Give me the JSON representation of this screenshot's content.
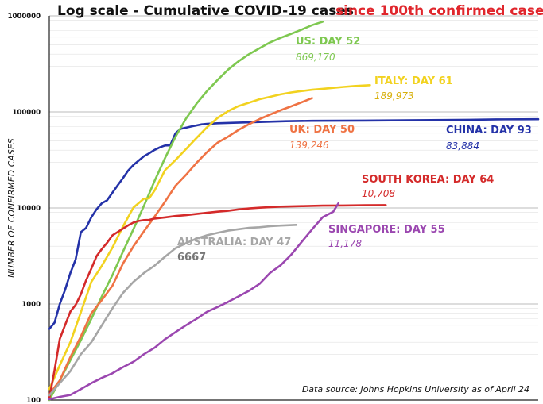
{
  "chart_data": {
    "type": "line",
    "title_part1": "Log scale - Cumulative COVID-19 cases",
    "title_part2": "since 100th confirmed case",
    "ylabel": "NUMBER OF CONFIRMED CASES",
    "yscale": "log",
    "ylim": [
      100,
      1000000
    ],
    "xlim": [
      0,
      93
    ],
    "yticks": [
      {
        "value": 100,
        "label": "100"
      },
      {
        "value": 1000,
        "label": "1000"
      },
      {
        "value": 10000,
        "label": "10000"
      },
      {
        "value": 100000,
        "label": "100000"
      },
      {
        "value": 1000000,
        "label": "1000000"
      }
    ],
    "grid": true,
    "source_note": "Data source: Johns Hopkins University as of April 24",
    "colors": {
      "title_accent": "#e0262c",
      "axis": "#222222",
      "grid_major": "#bbbbbb",
      "grid_minor": "#e2e2e2"
    },
    "series": [
      {
        "id": "china",
        "label": "CHINA: DAY 93",
        "value_label": "83,884",
        "color": "#2432a8",
        "points": [
          [
            0,
            550
          ],
          [
            1,
            640
          ],
          [
            2,
            1000
          ],
          [
            3,
            1400
          ],
          [
            4,
            2100
          ],
          [
            5,
            2900
          ],
          [
            6,
            5600
          ],
          [
            7,
            6200
          ],
          [
            8,
            8000
          ],
          [
            9,
            9700
          ],
          [
            10,
            11200
          ],
          [
            11,
            12000
          ],
          [
            12,
            14400
          ],
          [
            13,
            17200
          ],
          [
            14,
            20400
          ],
          [
            15,
            24500
          ],
          [
            16,
            28000
          ],
          [
            17,
            31100
          ],
          [
            18,
            34500
          ],
          [
            19,
            37100
          ],
          [
            20,
            40200
          ],
          [
            21,
            42700
          ],
          [
            22,
            44700
          ],
          [
            23,
            44900
          ],
          [
            24,
            59800
          ],
          [
            25,
            66500
          ],
          [
            26,
            68500
          ],
          [
            27,
            70500
          ],
          [
            28,
            72400
          ],
          [
            29,
            74200
          ],
          [
            30,
            75000
          ],
          [
            32,
            76200
          ],
          [
            35,
            77000
          ],
          [
            40,
            78500
          ],
          [
            45,
            80000
          ],
          [
            50,
            80800
          ],
          [
            55,
            81000
          ],
          [
            60,
            81300
          ],
          [
            65,
            81500
          ],
          [
            70,
            82000
          ],
          [
            75,
            82400
          ],
          [
            80,
            82800
          ],
          [
            85,
            83600
          ],
          [
            90,
            83800
          ],
          [
            93,
            83884
          ]
        ]
      },
      {
        "id": "us",
        "label": "US: DAY 52",
        "value_label": "869,170",
        "color": "#7ec850",
        "points": [
          [
            0,
            100
          ],
          [
            2,
            160
          ],
          [
            4,
            260
          ],
          [
            6,
            420
          ],
          [
            8,
            700
          ],
          [
            10,
            1200
          ],
          [
            12,
            2000
          ],
          [
            14,
            3500
          ],
          [
            16,
            6000
          ],
          [
            18,
            10500
          ],
          [
            20,
            19000
          ],
          [
            22,
            33000
          ],
          [
            24,
            55000
          ],
          [
            26,
            85000
          ],
          [
            28,
            122000
          ],
          [
            30,
            165000
          ],
          [
            32,
            215000
          ],
          [
            34,
            275000
          ],
          [
            36,
            337000
          ],
          [
            38,
            400000
          ],
          [
            40,
            460000
          ],
          [
            42,
            530000
          ],
          [
            44,
            590000
          ],
          [
            46,
            650000
          ],
          [
            48,
            720000
          ],
          [
            50,
            800000
          ],
          [
            52,
            869170
          ]
        ]
      },
      {
        "id": "italy",
        "label": "ITALY: DAY 61",
        "value_label": "189,973",
        "color": "#f2d21f",
        "points": [
          [
            0,
            130
          ],
          [
            2,
            230
          ],
          [
            4,
            400
          ],
          [
            6,
            820
          ],
          [
            8,
            1700
          ],
          [
            10,
            2500
          ],
          [
            12,
            3860
          ],
          [
            14,
            6400
          ],
          [
            16,
            10100
          ],
          [
            18,
            12500
          ],
          [
            19,
            12600
          ],
          [
            20,
            15100
          ],
          [
            22,
            24700
          ],
          [
            24,
            31500
          ],
          [
            26,
            41000
          ],
          [
            28,
            53600
          ],
          [
            30,
            69200
          ],
          [
            32,
            86500
          ],
          [
            34,
            101700
          ],
          [
            36,
            115200
          ],
          [
            38,
            124600
          ],
          [
            40,
            135600
          ],
          [
            42,
            143600
          ],
          [
            44,
            152300
          ],
          [
            46,
            159500
          ],
          [
            48,
            165100
          ],
          [
            50,
            170000
          ],
          [
            52,
            174000
          ],
          [
            54,
            178000
          ],
          [
            56,
            182000
          ],
          [
            58,
            186000
          ],
          [
            61,
            189973
          ]
        ]
      },
      {
        "id": "uk",
        "label": "UK: DAY 50",
        "value_label": "139,246",
        "color": "#ef7344",
        "points": [
          [
            0,
            115
          ],
          [
            2,
            160
          ],
          [
            4,
            280
          ],
          [
            6,
            460
          ],
          [
            8,
            800
          ],
          [
            10,
            1100
          ],
          [
            12,
            1550
          ],
          [
            14,
            2630
          ],
          [
            16,
            3980
          ],
          [
            18,
            5700
          ],
          [
            20,
            8100
          ],
          [
            22,
            11600
          ],
          [
            24,
            17000
          ],
          [
            26,
            22100
          ],
          [
            28,
            29500
          ],
          [
            30,
            38200
          ],
          [
            32,
            47800
          ],
          [
            34,
            55200
          ],
          [
            36,
            65100
          ],
          [
            38,
            74600
          ],
          [
            40,
            84300
          ],
          [
            42,
            93900
          ],
          [
            44,
            104100
          ],
          [
            46,
            114200
          ],
          [
            48,
            126000
          ],
          [
            50,
            139246
          ]
        ]
      },
      {
        "id": "southkorea",
        "label": "SOUTH KOREA: DAY 64",
        "value_label": "10,708",
        "color": "#d42a2a",
        "points": [
          [
            0,
            104
          ],
          [
            1,
            204
          ],
          [
            2,
            433
          ],
          [
            3,
            602
          ],
          [
            4,
            833
          ],
          [
            5,
            977
          ],
          [
            6,
            1261
          ],
          [
            7,
            1766
          ],
          [
            8,
            2337
          ],
          [
            9,
            3150
          ],
          [
            10,
            3736
          ],
          [
            11,
            4335
          ],
          [
            12,
            5186
          ],
          [
            13,
            5621
          ],
          [
            14,
            6088
          ],
          [
            15,
            6593
          ],
          [
            16,
            7041
          ],
          [
            17,
            7314
          ],
          [
            18,
            7478
          ],
          [
            19,
            7513
          ],
          [
            20,
            7755
          ],
          [
            22,
            7979
          ],
          [
            24,
            8236
          ],
          [
            26,
            8413
          ],
          [
            28,
            8652
          ],
          [
            30,
            8897
          ],
          [
            32,
            9137
          ],
          [
            34,
            9332
          ],
          [
            36,
            9661
          ],
          [
            38,
            9887
          ],
          [
            40,
            10062
          ],
          [
            44,
            10331
          ],
          [
            48,
            10450
          ],
          [
            52,
            10564
          ],
          [
            56,
            10613
          ],
          [
            60,
            10674
          ],
          [
            64,
            10708
          ]
        ]
      },
      {
        "id": "australia",
        "label": "AUSTRALIA: DAY 47",
        "value_label": "6667",
        "color": "#a6a6a6",
        "points": [
          [
            0,
            112
          ],
          [
            2,
            150
          ],
          [
            4,
            200
          ],
          [
            6,
            300
          ],
          [
            8,
            400
          ],
          [
            10,
            600
          ],
          [
            12,
            900
          ],
          [
            14,
            1300
          ],
          [
            16,
            1700
          ],
          [
            18,
            2100
          ],
          [
            20,
            2500
          ],
          [
            22,
            3100
          ],
          [
            24,
            3800
          ],
          [
            26,
            4300
          ],
          [
            28,
            4800
          ],
          [
            30,
            5200
          ],
          [
            32,
            5500
          ],
          [
            34,
            5800
          ],
          [
            36,
            6000
          ],
          [
            38,
            6200
          ],
          [
            40,
            6300
          ],
          [
            42,
            6450
          ],
          [
            44,
            6550
          ],
          [
            47,
            6667
          ]
        ]
      },
      {
        "id": "singapore",
        "label": "SINGAPORE: DAY 55",
        "value_label": "11,178",
        "color": "#9b47b0",
        "points": [
          [
            0,
            102
          ],
          [
            2,
            108
          ],
          [
            4,
            113
          ],
          [
            6,
            130
          ],
          [
            8,
            150
          ],
          [
            10,
            170
          ],
          [
            12,
            190
          ],
          [
            14,
            220
          ],
          [
            16,
            250
          ],
          [
            18,
            300
          ],
          [
            20,
            350
          ],
          [
            22,
            430
          ],
          [
            24,
            510
          ],
          [
            26,
            600
          ],
          [
            28,
            700
          ],
          [
            30,
            830
          ],
          [
            32,
            930
          ],
          [
            34,
            1050
          ],
          [
            36,
            1200
          ],
          [
            38,
            1375
          ],
          [
            40,
            1623
          ],
          [
            42,
            2108
          ],
          [
            44,
            2532
          ],
          [
            46,
            3252
          ],
          [
            48,
            4427
          ],
          [
            50,
            5992
          ],
          [
            52,
            8014
          ],
          [
            54,
            9125
          ],
          [
            55,
            11178
          ]
        ]
      }
    ]
  }
}
